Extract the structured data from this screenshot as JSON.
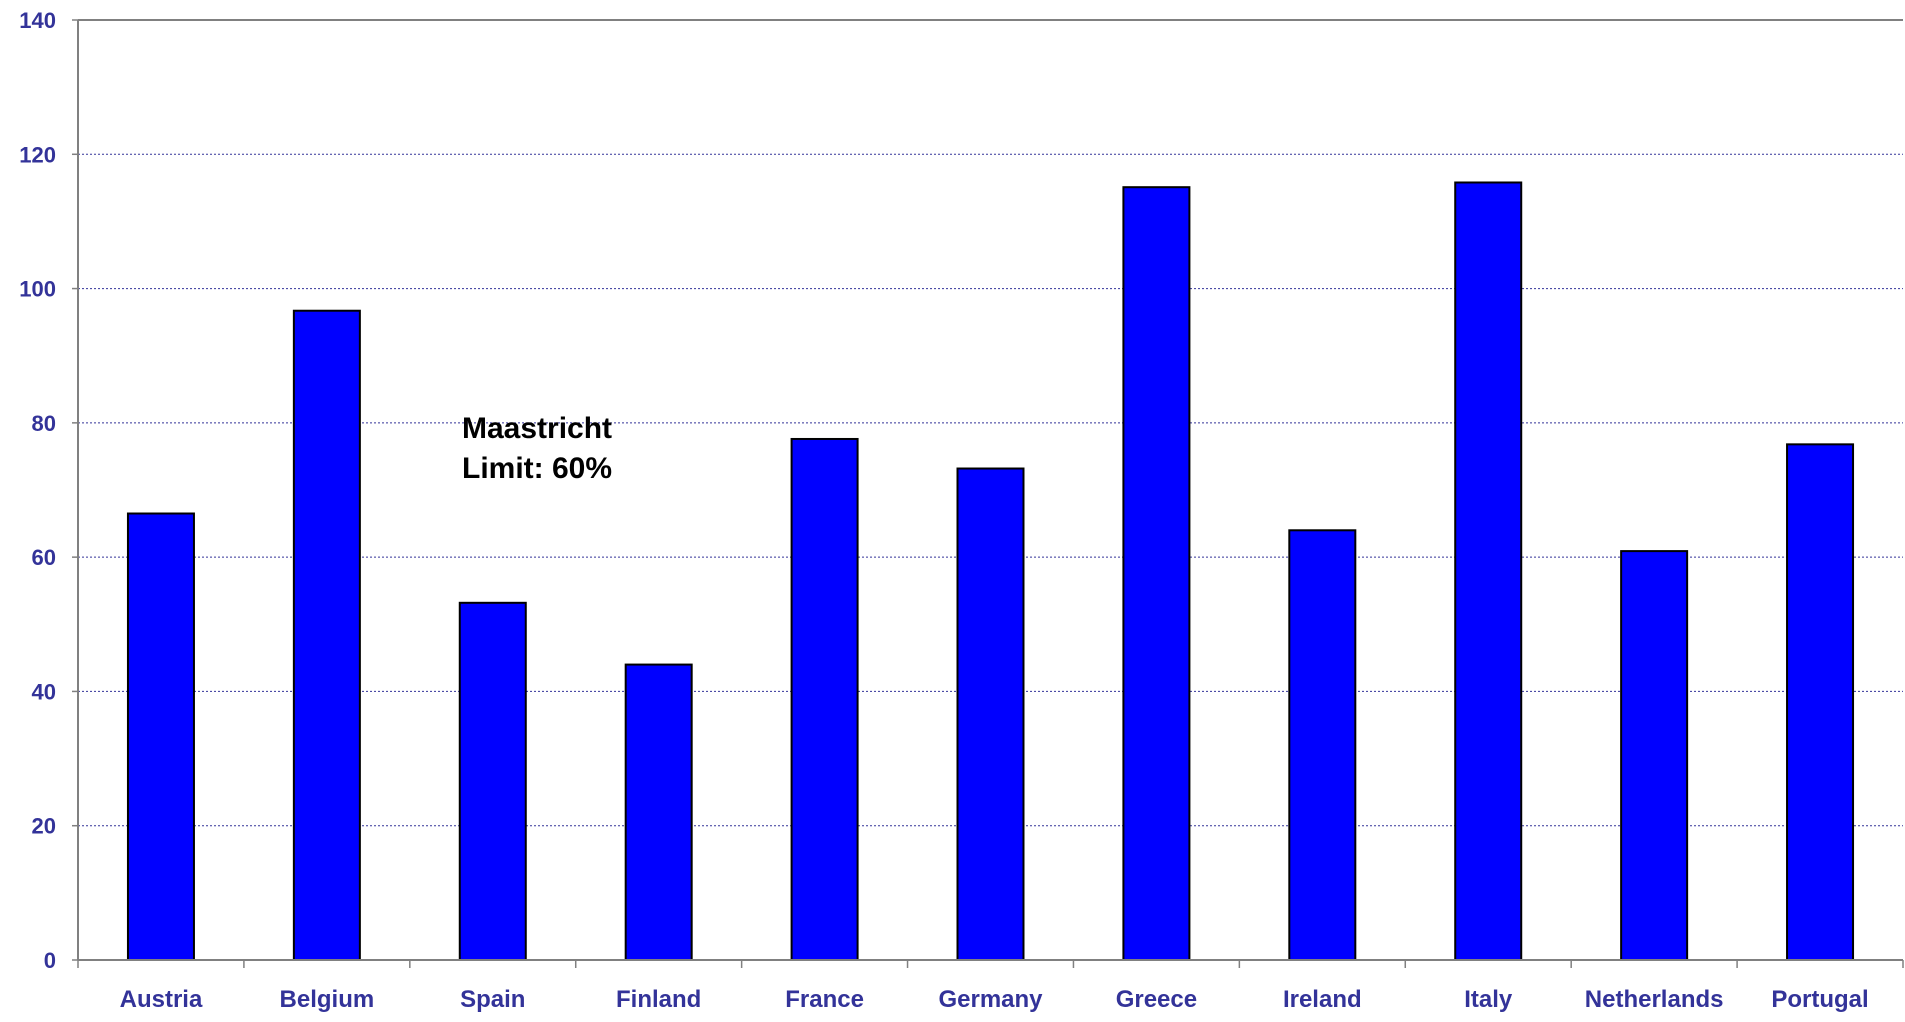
{
  "chart_data": {
    "type": "bar",
    "title": "",
    "xlabel": "",
    "ylabel": "",
    "categories": [
      "Austria",
      "Belgium",
      "Spain",
      "Finland",
      "France",
      "Germany",
      "Greece",
      "Ireland",
      "Italy",
      "Netherlands",
      "Portugal"
    ],
    "values": [
      66.5,
      96.7,
      53.2,
      44.0,
      77.6,
      73.2,
      115.1,
      64.0,
      115.8,
      60.9,
      76.8
    ],
    "ylim": [
      0,
      140
    ],
    "yticks": [
      "0",
      "20",
      "40",
      "60",
      "80",
      "100",
      "120",
      "140"
    ],
    "grid": true,
    "legend": "none",
    "annotation": {
      "line1": "Maastricht",
      "line2": "Limit: 60%"
    },
    "colors": {
      "bar": "#0000ff",
      "bar_outline": "#000000",
      "tick_text": "#333399",
      "grid": "#333399",
      "axis": "#808080"
    }
  }
}
